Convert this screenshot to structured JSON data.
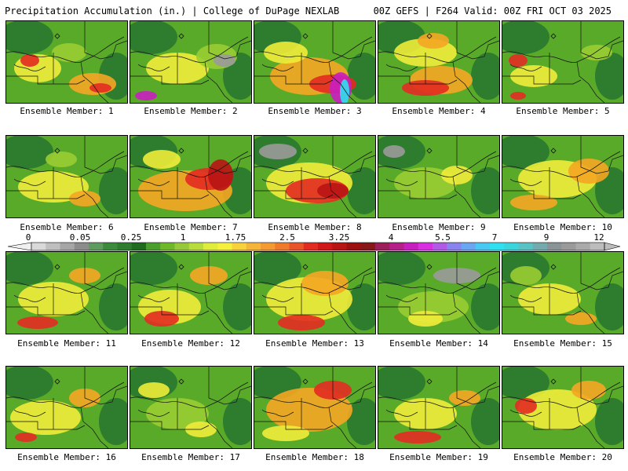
{
  "header": {
    "title_left": "Precipitation Accumulation (in.) | College of DuPage NEXLAB",
    "title_right": "00Z GEFS | F264 Valid: 00Z FRI OCT 03 2025"
  },
  "colorbar": {
    "tick_labels": [
      "0",
      "0.05",
      "0.25",
      "1",
      "1.75",
      "2.5",
      "3.25",
      "4",
      "5.5",
      "7",
      "9",
      "12"
    ],
    "colors": [
      "#d9d9d9",
      "#bfbfbf",
      "#a6a6a6",
      "#8c8c8c",
      "#5e9c5e",
      "#3c8a3c",
      "#2e7d2e",
      "#1f6b1f",
      "#4aa02c",
      "#6fb82a",
      "#96c83a",
      "#b8dc3c",
      "#e0ec3a",
      "#f5f03c",
      "#f7d23a",
      "#f5b43a",
      "#f39a33",
      "#ef7a2c",
      "#e95528",
      "#e32b22",
      "#d01818",
      "#b81414",
      "#9c1010",
      "#861818",
      "#9c1f5a",
      "#b51f88",
      "#c81ec0",
      "#d82fe0",
      "#b05ae6",
      "#8a82ee",
      "#6aa6f2",
      "#4ac8f4",
      "#2ee0f0",
      "#3ad4dc",
      "#58c2c4",
      "#72aaae",
      "#8a9496",
      "#9a9a9a",
      "#aaaaaa",
      "#bcbcbc"
    ]
  },
  "members": [
    {
      "label": "Ensemble Member: 1"
    },
    {
      "label": "Ensemble Member: 2"
    },
    {
      "label": "Ensemble Member: 3"
    },
    {
      "label": "Ensemble Member: 4"
    },
    {
      "label": "Ensemble Member: 5"
    },
    {
      "label": "Ensemble Member: 6"
    },
    {
      "label": "Ensemble Member: 7"
    },
    {
      "label": "Ensemble Member: 8"
    },
    {
      "label": "Ensemble Member: 9"
    },
    {
      "label": "Ensemble Member: 10"
    },
    {
      "label": "Ensemble Member: 11"
    },
    {
      "label": "Ensemble Member: 12"
    },
    {
      "label": "Ensemble Member: 13"
    },
    {
      "label": "Ensemble Member: 14"
    },
    {
      "label": "Ensemble Member: 15"
    },
    {
      "label": "Ensemble Member: 16"
    },
    {
      "label": "Ensemble Member: 17"
    },
    {
      "label": "Ensemble Member: 18"
    },
    {
      "label": "Ensemble Member: 19"
    },
    {
      "label": "Ensemble Member: 20"
    }
  ],
  "palette": {
    "darkgreen": "#2e7d2e",
    "green": "#5aaa2a",
    "lightgreen": "#9acd32",
    "yellow": "#f0ec3a",
    "orange": "#f5a623",
    "red": "#e32b22",
    "darkred": "#b81414",
    "magenta": "#c81ec0",
    "cyan": "#2ee0f0",
    "gray": "#9a9a9a"
  }
}
